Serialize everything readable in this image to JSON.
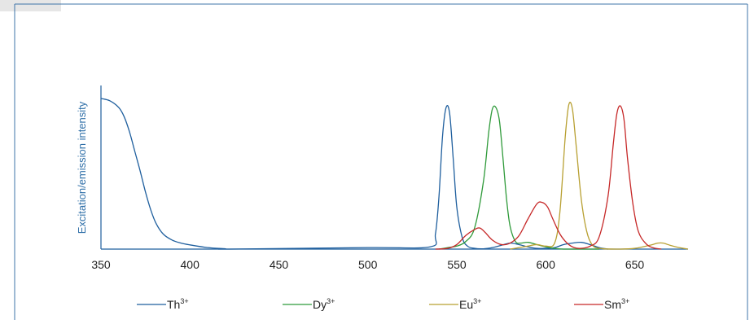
{
  "chart_data": {
    "type": "line",
    "title": "",
    "xlabel": "",
    "ylabel": "Excitation/emission intensity",
    "xlim": [
      350,
      680
    ],
    "ylim": [
      0,
      1
    ],
    "xticks": [
      "350",
      "400",
      "450",
      "500",
      "550",
      "600",
      "650"
    ],
    "grid": false,
    "legend_position": "bottom",
    "series": [
      {
        "name": "Th3+",
        "label_base": "Th",
        "label_sup": "3+",
        "color": "#1f5f9e",
        "x": [
          350,
          355,
          360,
          363,
          366,
          369,
          372,
          375,
          378,
          381,
          385,
          390,
          395,
          400,
          410,
          420,
          422,
          500,
          535,
          538,
          540,
          542,
          544,
          546,
          548,
          550,
          553,
          556,
          560,
          565,
          570,
          575,
          580,
          585,
          590,
          595,
          600,
          605,
          610,
          615,
          620,
          625,
          630,
          635
        ],
        "y": [
          1.0,
          0.985,
          0.94,
          0.88,
          0.78,
          0.65,
          0.52,
          0.38,
          0.26,
          0.17,
          0.1,
          0.06,
          0.04,
          0.028,
          0.01,
          0.002,
          0.0,
          0.01,
          0.015,
          0.1,
          0.35,
          0.75,
          0.94,
          0.9,
          0.6,
          0.28,
          0.08,
          0.02,
          0.005,
          0.002,
          0.01,
          0.025,
          0.04,
          0.03,
          0.015,
          0.005,
          0.005,
          0.01,
          0.03,
          0.04,
          0.045,
          0.03,
          0.01,
          0.0
        ]
      },
      {
        "name": "Dy3+",
        "label_base": "Dy",
        "label_sup": "3+",
        "color": "#2f9a3a",
        "x": [
          540,
          545,
          550,
          555,
          560,
          565,
          568,
          570,
          572,
          574,
          576,
          578,
          580,
          583,
          586,
          590,
          595,
          600,
          605,
          610,
          620,
          630
        ],
        "y": [
          0.0,
          0.01,
          0.02,
          0.05,
          0.14,
          0.45,
          0.78,
          0.93,
          0.94,
          0.85,
          0.6,
          0.33,
          0.15,
          0.05,
          0.04,
          0.045,
          0.03,
          0.015,
          0.005,
          0.0,
          0.0,
          0.0
        ]
      },
      {
        "name": "Eu3+",
        "label_base": "Eu",
        "label_sup": "3+",
        "color": "#b8a032",
        "x": [
          580,
          585,
          590,
          595,
          600,
          605,
          608,
          611,
          613,
          615,
          617,
          620,
          623,
          626,
          630,
          640,
          650,
          660,
          663,
          666,
          670,
          675,
          680
        ],
        "y": [
          0.0,
          0.01,
          0.02,
          0.03,
          0.02,
          0.04,
          0.25,
          0.75,
          0.96,
          0.93,
          0.7,
          0.33,
          0.12,
          0.03,
          0.005,
          0.0,
          0.005,
          0.03,
          0.04,
          0.04,
          0.025,
          0.01,
          0.0
        ]
      },
      {
        "name": "Sm3+",
        "label_base": "Sm",
        "label_sup": "3+",
        "color": "#c62828",
        "x": [
          538,
          545,
          550,
          555,
          560,
          563,
          566,
          570,
          575,
          580,
          585,
          590,
          595,
          598,
          601,
          604,
          608,
          612,
          616,
          620,
          625,
          630,
          635,
          638,
          640,
          642,
          644,
          646,
          649,
          652,
          656,
          660,
          665
        ],
        "y": [
          0.0,
          0.005,
          0.03,
          0.09,
          0.13,
          0.14,
          0.11,
          0.06,
          0.03,
          0.04,
          0.09,
          0.2,
          0.3,
          0.31,
          0.28,
          0.2,
          0.1,
          0.04,
          0.01,
          0.005,
          0.02,
          0.08,
          0.35,
          0.7,
          0.9,
          0.95,
          0.86,
          0.6,
          0.3,
          0.12,
          0.04,
          0.01,
          0.0
        ]
      }
    ]
  }
}
